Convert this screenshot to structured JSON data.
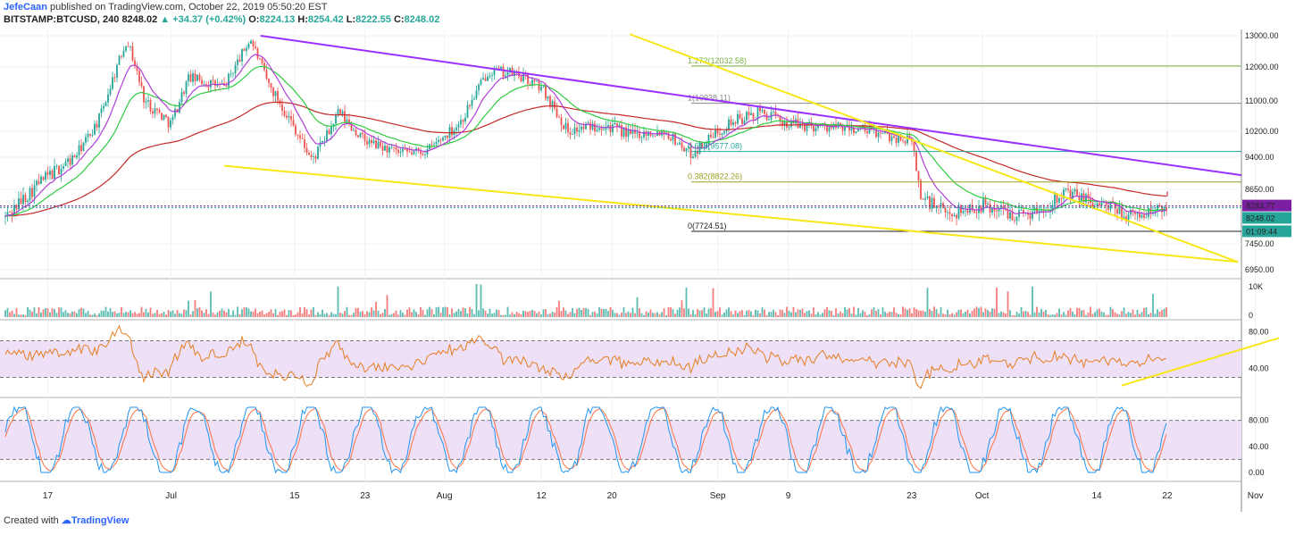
{
  "header": {
    "author": "JefeCaan",
    "published": "published on TradingView.com, October 22, 2019 05:50:20 EST",
    "symbol": "BITSTAMP:BTCUSD, 240",
    "last": "8248.02",
    "change": "+34.37 (+0.42%)",
    "o_label": "O:",
    "o": "8224.13",
    "h_label": "H:",
    "h": "8254.42",
    "l_label": "L:",
    "l": "8222.55",
    "c_label": "C:",
    "c": "8248.02"
  },
  "footer": {
    "created": "Created with",
    "brand": "TradingView"
  },
  "colors": {
    "up": "#26a69a",
    "down": "#ef5350",
    "wma_purple": "#b03fd8",
    "ma_green": "#2ecc40",
    "ma_red": "#c62828",
    "long_purple": "#9b30ff",
    "trend_yellow": "#f7e717",
    "rsi_line": "#e67e22",
    "stoch_k": "#2196f3",
    "stoch_d": "#ff7043",
    "band_fill": "#ede0f7"
  },
  "chart_data": {
    "type": "candlestick",
    "symbol": "BITSTAMP:BTCUSD",
    "interval": "240",
    "price_axis_ticks": [
      "13000.00",
      "12000.00",
      "11000.00",
      "10200.00",
      "9400.00",
      "8650.00",
      "7450.00",
      "6950.00"
    ],
    "x_ticks": [
      "17",
      "Jul",
      "15",
      "23",
      "Aug",
      "12",
      "20",
      "Sep",
      "9",
      "23",
      "Oct",
      "14",
      "22",
      "Nov"
    ],
    "price_tags": [
      {
        "label": "8283.77",
        "value": 8283.77,
        "color": "#7b1fa2"
      },
      {
        "label": "8248.02",
        "value": 8248.02,
        "color": "#26a69a"
      },
      {
        "label": "01:09:44",
        "value": 8000,
        "color": "#26a69a"
      }
    ],
    "fib_levels": [
      {
        "label": "1.272(12032.58)",
        "value": 12032.58,
        "color": "#7cb342"
      },
      {
        "label": "1(10938.11)",
        "value": 10938.11,
        "color": "#888888"
      },
      {
        "label": "0.618(9577.08)",
        "value": 9577.08,
        "color": "#26a69a"
      },
      {
        "label": "0.382(8822.26)",
        "value": 8822.26,
        "color": "#9e9d24"
      },
      {
        "label": "0(7724.51)",
        "value": 7724.51,
        "color": "#222222"
      }
    ],
    "price_path": [
      {
        "d": "Jun 12",
        "v": 8000
      },
      {
        "d": "Jun 16",
        "v": 8800
      },
      {
        "d": "Jun 20",
        "v": 9400
      },
      {
        "d": "Jun 23",
        "v": 10600
      },
      {
        "d": "Jun 26",
        "v": 12900
      },
      {
        "d": "Jun 28",
        "v": 11000
      },
      {
        "d": "Jul 1",
        "v": 10400
      },
      {
        "d": "Jul 3",
        "v": 11700
      },
      {
        "d": "Jul 7",
        "v": 11400
      },
      {
        "d": "Jul 10",
        "v": 12900
      },
      {
        "d": "Jul 12",
        "v": 11500
      },
      {
        "d": "Jul 15",
        "v": 10300
      },
      {
        "d": "Jul 17",
        "v": 9300
      },
      {
        "d": "Jul 20",
        "v": 10700
      },
      {
        "d": "Jul 23",
        "v": 9900
      },
      {
        "d": "Jul 27",
        "v": 9500
      },
      {
        "d": "Jul 30",
        "v": 9600
      },
      {
        "d": "Aug 3",
        "v": 10500
      },
      {
        "d": "Aug 6",
        "v": 11900
      },
      {
        "d": "Aug 9",
        "v": 11800
      },
      {
        "d": "Aug 12",
        "v": 11400
      },
      {
        "d": "Aug 15",
        "v": 10200
      },
      {
        "d": "Aug 19",
        "v": 10400
      },
      {
        "d": "Aug 22",
        "v": 10100
      },
      {
        "d": "Aug 26",
        "v": 10200
      },
      {
        "d": "Aug 29",
        "v": 9500
      },
      {
        "d": "Sep 2",
        "v": 10400
      },
      {
        "d": "Sep 6",
        "v": 10700
      },
      {
        "d": "Sep 9",
        "v": 10400
      },
      {
        "d": "Sep 14",
        "v": 10300
      },
      {
        "d": "Sep 18",
        "v": 10200
      },
      {
        "d": "Sep 23",
        "v": 9900
      },
      {
        "d": "Sep 24",
        "v": 8500
      },
      {
        "d": "Sep 27",
        "v": 8100
      },
      {
        "d": "Oct 1",
        "v": 8300
      },
      {
        "d": "Oct 5",
        "v": 8100
      },
      {
        "d": "Oct 8",
        "v": 8200
      },
      {
        "d": "Oct 10",
        "v": 8600
      },
      {
        "d": "Oct 14",
        "v": 8350
      },
      {
        "d": "Oct 18",
        "v": 8050
      },
      {
        "d": "Oct 22",
        "v": 8248
      }
    ],
    "volume_axis_ticks": [
      "10K",
      "0"
    ],
    "rsi": {
      "ticks": [
        "80.00",
        "40.00"
      ],
      "upper": 70,
      "lower": 30
    },
    "stoch": {
      "ticks": [
        "80.00",
        "40.00",
        "0.00"
      ],
      "upper": 80,
      "lower": 20
    }
  }
}
